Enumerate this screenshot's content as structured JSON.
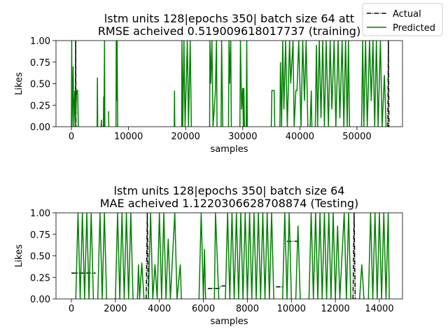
{
  "chart_data": [
    {
      "type": "line",
      "title": [
        "lstm units 128|epochs 350| batch size 64 att",
        "RMSE acheived 0.519009618017737 (training)"
      ],
      "xlabel": "samples",
      "ylabel": "Likes",
      "xlim": [
        -2700,
        57970
      ],
      "ylim": [
        0,
        1
      ],
      "xticks": [
        0,
        10000,
        20000,
        30000,
        40000,
        50000
      ],
      "yticks": [
        {
          "value": 0,
          "label": "0.00"
        },
        {
          "value": 0.25,
          "label": "0.25"
        },
        {
          "value": 0.5,
          "label": "0.50"
        },
        {
          "value": 0.75,
          "label": "0.75"
        },
        {
          "value": 1,
          "label": "1.00"
        }
      ],
      "legend": "upper right",
      "series": [
        {
          "name": "Actual",
          "color": "#000000",
          "linestyle": "dashdot",
          "x": [
            700,
            750,
            800,
            null,
            55400,
            55500,
            55600
          ],
          "values": [
            0,
            1,
            0,
            null,
            0,
            1,
            0
          ]
        },
        {
          "name": "Predicted",
          "color": "#008000",
          "linestyle": "solid",
          "x": [
            0,
            50,
            100,
            300,
            400,
            600,
            700,
            900,
            1100,
            1200,
            null,
            4500,
            4550,
            4600,
            null,
            5200,
            5250,
            5300,
            5600,
            5650,
            5700,
            5800,
            5850,
            null,
            6500,
            6550,
            null,
            7800,
            7850,
            7900,
            8000,
            8100,
            null,
            18000,
            18050,
            18100,
            null,
            19300,
            19350,
            19500,
            19700,
            19900,
            20300,
            20500,
            20800,
            21000,
            null,
            24200,
            24250,
            24400,
            24600,
            24800,
            25200,
            25400,
            25500,
            null,
            26200,
            26300,
            26500,
            null,
            27500,
            27600,
            27700,
            27900,
            28000,
            null,
            29500,
            29600,
            29800,
            30000,
            30100,
            30200,
            30300,
            null,
            30600,
            30700,
            30800,
            null,
            35000,
            35100,
            35500,
            35600,
            null,
            36500,
            36600,
            36800,
            37000,
            37200,
            37500,
            37800,
            38200,
            38400,
            38800,
            39000,
            39300,
            39500,
            39800,
            40200,
            40500,
            40800,
            41100,
            41400,
            null,
            41800,
            42000,
            42100,
            null,
            42700,
            42900,
            43100,
            43400,
            43700,
            44000,
            44300,
            44600,
            45000,
            45300,
            45600,
            46000,
            46300,
            46700,
            47000,
            47400,
            47700,
            48000,
            48300,
            48500,
            48700,
            null,
            50800,
            51000,
            51200,
            51500,
            51800,
            52200,
            52500,
            52800,
            53100,
            53400,
            53700,
            54100,
            54400,
            54800,
            55100
          ],
          "values": [
            0,
            1,
            0,
            0.7,
            0,
            0.42,
            0,
            0.42,
            0.42,
            0,
            null,
            0,
            0.57,
            0,
            null,
            0,
            0.08,
            0,
            0,
            0.35,
            0,
            1,
            0,
            null,
            0.18,
            0,
            null,
            0,
            1,
            0.3,
            1,
            0,
            null,
            0,
            0.42,
            0,
            null,
            0,
            1,
            0,
            1,
            0,
            1,
            0,
            1,
            0,
            null,
            0,
            1,
            0.5,
            1,
            0,
            0.4,
            1,
            0,
            null,
            0,
            1,
            0,
            null,
            0,
            1,
            0.5,
            1,
            0,
            null,
            0,
            1,
            0.2,
            0.45,
            0,
            0.45,
            0,
            null,
            0,
            1,
            0,
            null,
            0,
            0.42,
            0.42,
            0,
            null,
            0,
            0.75,
            0,
            1,
            0.2,
            1,
            0,
            1,
            0.5,
            1,
            0,
            0.42,
            0.42,
            1,
            0,
            1,
            0.3,
            1,
            0,
            null,
            0,
            0.42,
            0,
            null,
            0,
            0.95,
            0,
            1,
            0.1,
            1,
            0,
            1,
            0,
            1,
            0.2,
            1,
            0,
            1,
            0.1,
            1,
            0,
            1,
            0,
            1,
            0,
            null,
            0,
            1,
            0,
            1,
            0,
            1,
            0.3,
            1,
            0,
            1,
            0,
            1,
            0,
            0.6,
            0
          ]
        }
      ]
    },
    {
      "type": "line",
      "title": [
        "lstm units 128|epochs 350| batch size 64",
        "MAE acheived 1.1220306628708874 (Testing)"
      ],
      "xlabel": "samples",
      "ylabel": "Likes",
      "xlim": [
        -700,
        15050
      ],
      "ylim": [
        0,
        1
      ],
      "xticks": [
        0,
        2000,
        4000,
        6000,
        8000,
        10000,
        12000,
        14000
      ],
      "yticks": [
        {
          "value": 0,
          "label": "0.00"
        },
        {
          "value": 0.25,
          "label": "0.25"
        },
        {
          "value": 0.5,
          "label": "0.50"
        },
        {
          "value": 0.75,
          "label": "0.75"
        },
        {
          "value": 1,
          "label": "1.00"
        }
      ],
      "series": [
        {
          "name": "Actual",
          "color": "#000000",
          "linestyle": "dashdot",
          "x": [
            0,
            1100,
            null,
            3400,
            3450,
            3500,
            null,
            6200,
            6700,
            6800,
            7000,
            null,
            9300,
            9600,
            null,
            9800,
            10400,
            null,
            12800,
            12850,
            12900
          ],
          "values": [
            0.3,
            0.3,
            null,
            0,
            1,
            0,
            null,
            0.12,
            0.12,
            0.15,
            0.15,
            null,
            0.14,
            0.14,
            null,
            0.67,
            0.67,
            null,
            0,
            1,
            0
          ]
        },
        {
          "name": "Predicted",
          "color": "#008000",
          "linestyle": "solid",
          "x": [
            200,
            300,
            400,
            500,
            600,
            700,
            800,
            900,
            1000,
            null,
            1200,
            1300,
            1400,
            1500,
            1600,
            null,
            2000,
            2100,
            2200,
            2300,
            2400,
            2500,
            2600,
            2700,
            2800,
            null,
            3000,
            3050,
            3100,
            3200,
            3300,
            null,
            3500,
            3600,
            3700,
            3800,
            3900,
            4000,
            4100,
            4200,
            4300,
            4400,
            4500,
            4700,
            4800,
            4950,
            5000,
            null,
            5800,
            5900,
            6000,
            6050,
            6100,
            null,
            6500,
            6550,
            6700,
            null,
            7000,
            7100,
            7200,
            7300,
            7400,
            7500,
            7600,
            7700,
            7800,
            7900,
            8000,
            8100,
            8200,
            8300,
            8400,
            8500,
            8600,
            8700,
            8800,
            8900,
            9000,
            9100,
            9200,
            null,
            9600,
            9700,
            9800,
            9900,
            10000,
            null,
            10200,
            10300,
            10400,
            null,
            10800,
            10900,
            11000,
            11100,
            11200,
            11300,
            11400,
            11500,
            11600,
            11700,
            11800,
            11900,
            12000,
            12100,
            12200,
            12400,
            12500,
            12600,
            12700,
            null,
            13100,
            13200,
            13300,
            null,
            13500,
            13600,
            13700,
            13800,
            13900,
            14000,
            14100,
            14200,
            14300,
            14400,
            14450
          ],
          "values": [
            0,
            1,
            0,
            1,
            0,
            1,
            0,
            1,
            0,
            null,
            0,
            1,
            0,
            1,
            0,
            null,
            0,
            1,
            0,
            1,
            0,
            1,
            0,
            1,
            0,
            null,
            0,
            0.4,
            0,
            0.42,
            0,
            null,
            0,
            1,
            0,
            0.4,
            0,
            1,
            0,
            1,
            0,
            0.7,
            0,
            1,
            0,
            0.4,
            0,
            null,
            0,
            1,
            0,
            0.58,
            0,
            null,
            0,
            1,
            0,
            null,
            0,
            1,
            0,
            1,
            0,
            1,
            0,
            1,
            0,
            1,
            0,
            1,
            0,
            1,
            0,
            1,
            0,
            1,
            0,
            1,
            0,
            1,
            0,
            null,
            0,
            1,
            0,
            1,
            0,
            null,
            0,
            0.85,
            0,
            null,
            0,
            1,
            0,
            1,
            0,
            1,
            0,
            1,
            0,
            1,
            0,
            1,
            0,
            0.85,
            0,
            1,
            0,
            1,
            0,
            null,
            0,
            0.4,
            0,
            null,
            0,
            1,
            0,
            1,
            0,
            1,
            0,
            1,
            0,
            1,
            0
          ]
        }
      ]
    }
  ]
}
